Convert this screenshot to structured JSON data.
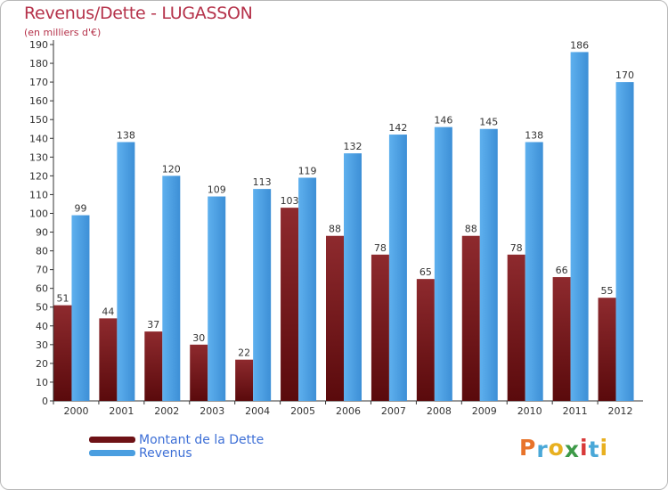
{
  "chart_data": {
    "type": "bar",
    "title": "Revenus/Dette - LUGASSON",
    "subtitle": "(en milliers d'€)",
    "categories": [
      "2000",
      "2001",
      "2002",
      "2003",
      "2004",
      "2005",
      "2006",
      "2007",
      "2008",
      "2009",
      "2010",
      "2011",
      "2012"
    ],
    "series": [
      {
        "name": "Montant de la Dette",
        "color": "#7a1418",
        "values": [
          51,
          44,
          37,
          30,
          22,
          103,
          88,
          78,
          65,
          88,
          78,
          66,
          55
        ]
      },
      {
        "name": "Revenus",
        "color": "#4a9ee0",
        "values": [
          99,
          138,
          120,
          109,
          113,
          119,
          132,
          142,
          146,
          145,
          138,
          186,
          170
        ]
      }
    ],
    "ylim": [
      0,
      190
    ],
    "ytick_step": 10,
    "grid": false,
    "legend_position": "bottom-left"
  },
  "logo": {
    "text": "Proxiti"
  }
}
